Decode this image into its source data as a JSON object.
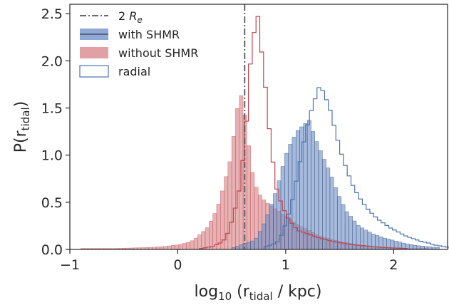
{
  "chart_data": {
    "type": "histogram",
    "xlabel_main": "log",
    "xlabel_sub": "10",
    "xlabel_rest": " (r",
    "xlabel_rsub": "tidal",
    "xlabel_unit": " / kpc)",
    "ylabel_main": "P(r",
    "ylabel_sub": "tidal",
    "ylabel_close": ")",
    "xlim": [
      -1.0,
      2.5
    ],
    "ylim": [
      0.0,
      2.6
    ],
    "xticks": [
      -1,
      0,
      1,
      2
    ],
    "xtick_labels": [
      "−1",
      "0",
      "1",
      "2"
    ],
    "yticks": [
      0.0,
      0.5,
      1.0,
      1.5,
      2.0,
      2.5
    ],
    "ytick_labels": [
      "0.0",
      "0.5",
      "1.0",
      "1.5",
      "2.0",
      "2.5"
    ],
    "bin_width": 0.035,
    "reference_line": {
      "x": 0.62,
      "label_prefix": "2 ",
      "label_r": "R",
      "label_sub": "e",
      "style": "dash-dot",
      "color": "#555555"
    },
    "legend": {
      "placement": "upper-left",
      "entries": [
        {
          "label": "with SHMR",
          "key": "with_shmr"
        },
        {
          "label": "without SHMR",
          "key": "without_shmr"
        },
        {
          "label": "radial",
          "key": "radial"
        }
      ]
    },
    "series": [
      {
        "key": "without_shmr",
        "label": "without SHMR",
        "kind": "filled",
        "fill": "#d9888c",
        "fill_opacity": 0.65,
        "edge": "#c0454c",
        "bins": [
          [
            -0.9,
            0.01
          ],
          [
            -0.6,
            0.01
          ],
          [
            -0.3,
            0.02
          ],
          [
            -0.15,
            0.03
          ],
          [
            0.0,
            0.05
          ],
          [
            0.1,
            0.08
          ],
          [
            0.15,
            0.12
          ],
          [
            0.2,
            0.17
          ],
          [
            0.25,
            0.22
          ],
          [
            0.3,
            0.32
          ],
          [
            0.35,
            0.44
          ],
          [
            0.4,
            0.64
          ],
          [
            0.45,
            0.86
          ],
          [
            0.48,
            1.0
          ],
          [
            0.5,
            1.2
          ],
          [
            0.53,
            1.46
          ],
          [
            0.56,
            1.67
          ],
          [
            0.59,
            1.55
          ],
          [
            0.62,
            1.3
          ],
          [
            0.65,
            1.0
          ],
          [
            0.68,
            0.78
          ],
          [
            0.72,
            0.62
          ],
          [
            0.76,
            0.55
          ],
          [
            0.8,
            0.5
          ],
          [
            0.85,
            0.46
          ],
          [
            0.9,
            0.42
          ],
          [
            0.95,
            0.38
          ],
          [
            1.0,
            0.34
          ],
          [
            1.05,
            0.3
          ],
          [
            1.1,
            0.26
          ],
          [
            1.15,
            0.23
          ],
          [
            1.2,
            0.2
          ],
          [
            1.25,
            0.17
          ],
          [
            1.3,
            0.14
          ],
          [
            1.4,
            0.11
          ],
          [
            1.5,
            0.08
          ],
          [
            1.6,
            0.06
          ],
          [
            1.7,
            0.04
          ],
          [
            1.8,
            0.03
          ],
          [
            1.9,
            0.02
          ],
          [
            2.0,
            0.01
          ],
          [
            2.3,
            0.01
          ]
        ]
      },
      {
        "key": "with_shmr",
        "label": "with SHMR",
        "kind": "filled",
        "fill": "#6e8fc8",
        "fill_opacity": 0.62,
        "edge": "#2f3f66",
        "bins": [
          [
            0.5,
            0.02
          ],
          [
            0.6,
            0.06
          ],
          [
            0.7,
            0.1
          ],
          [
            0.75,
            0.2
          ],
          [
            0.8,
            0.32
          ],
          [
            0.85,
            0.48
          ],
          [
            0.9,
            0.64
          ],
          [
            0.95,
            0.86
          ],
          [
            1.0,
            1.06
          ],
          [
            1.05,
            1.17
          ],
          [
            1.1,
            1.27
          ],
          [
            1.15,
            1.32
          ],
          [
            1.2,
            1.37
          ],
          [
            1.25,
            1.2
          ],
          [
            1.3,
            1.06
          ],
          [
            1.35,
            0.93
          ],
          [
            1.4,
            0.8
          ],
          [
            1.45,
            0.64
          ],
          [
            1.5,
            0.51
          ],
          [
            1.55,
            0.4
          ],
          [
            1.6,
            0.33
          ],
          [
            1.65,
            0.26
          ],
          [
            1.7,
            0.22
          ],
          [
            1.8,
            0.16
          ],
          [
            1.9,
            0.12
          ],
          [
            2.0,
            0.09
          ],
          [
            2.1,
            0.06
          ],
          [
            2.2,
            0.04
          ],
          [
            2.3,
            0.03
          ],
          [
            2.4,
            0.02
          ]
        ]
      },
      {
        "key": "radial",
        "label": "radial",
        "kind": "step",
        "edge": "#4c72b0",
        "bins": [
          [
            0.8,
            0.03
          ],
          [
            0.9,
            0.07
          ],
          [
            0.95,
            0.17
          ],
          [
            1.0,
            0.33
          ],
          [
            1.05,
            0.55
          ],
          [
            1.1,
            0.84
          ],
          [
            1.15,
            1.14
          ],
          [
            1.2,
            1.4
          ],
          [
            1.25,
            1.58
          ],
          [
            1.3,
            1.75
          ],
          [
            1.35,
            1.62
          ],
          [
            1.4,
            1.46
          ],
          [
            1.45,
            1.22
          ],
          [
            1.5,
            1.01
          ],
          [
            1.55,
            0.84
          ],
          [
            1.6,
            0.69
          ],
          [
            1.65,
            0.58
          ],
          [
            1.7,
            0.49
          ],
          [
            1.75,
            0.42
          ],
          [
            1.8,
            0.36
          ],
          [
            1.85,
            0.31
          ],
          [
            1.9,
            0.27
          ],
          [
            1.95,
            0.23
          ],
          [
            2.0,
            0.2
          ],
          [
            2.05,
            0.17
          ],
          [
            2.1,
            0.14
          ],
          [
            2.15,
            0.12
          ],
          [
            2.2,
            0.1
          ],
          [
            2.25,
            0.08
          ],
          [
            2.3,
            0.07
          ],
          [
            2.35,
            0.05
          ],
          [
            2.4,
            0.04
          ],
          [
            2.5,
            0.02
          ]
        ]
      },
      {
        "key": "without_shmr_outline",
        "label": "without SHMR (outline)",
        "kind": "step",
        "edge": "#c0454c",
        "bins": [
          [
            0.2,
            0.01
          ],
          [
            0.3,
            0.03
          ],
          [
            0.4,
            0.08
          ],
          [
            0.45,
            0.18
          ],
          [
            0.5,
            0.36
          ],
          [
            0.55,
            0.62
          ],
          [
            0.6,
            1.08
          ],
          [
            0.63,
            1.5
          ],
          [
            0.66,
            2.06
          ],
          [
            0.69,
            2.3
          ],
          [
            0.72,
            2.53
          ],
          [
            0.75,
            2.18
          ],
          [
            0.78,
            1.92
          ],
          [
            0.81,
            1.52
          ],
          [
            0.84,
            1.16
          ],
          [
            0.87,
            0.88
          ],
          [
            0.9,
            0.64
          ],
          [
            0.95,
            0.46
          ],
          [
            1.0,
            0.34
          ],
          [
            1.05,
            0.26
          ],
          [
            1.1,
            0.2
          ],
          [
            1.2,
            0.16
          ],
          [
            1.3,
            0.12
          ],
          [
            1.4,
            0.09
          ],
          [
            1.5,
            0.07
          ],
          [
            1.6,
            0.05
          ],
          [
            1.7,
            0.04
          ],
          [
            1.8,
            0.03
          ],
          [
            1.9,
            0.02
          ],
          [
            2.1,
            0.01
          ]
        ]
      }
    ]
  }
}
